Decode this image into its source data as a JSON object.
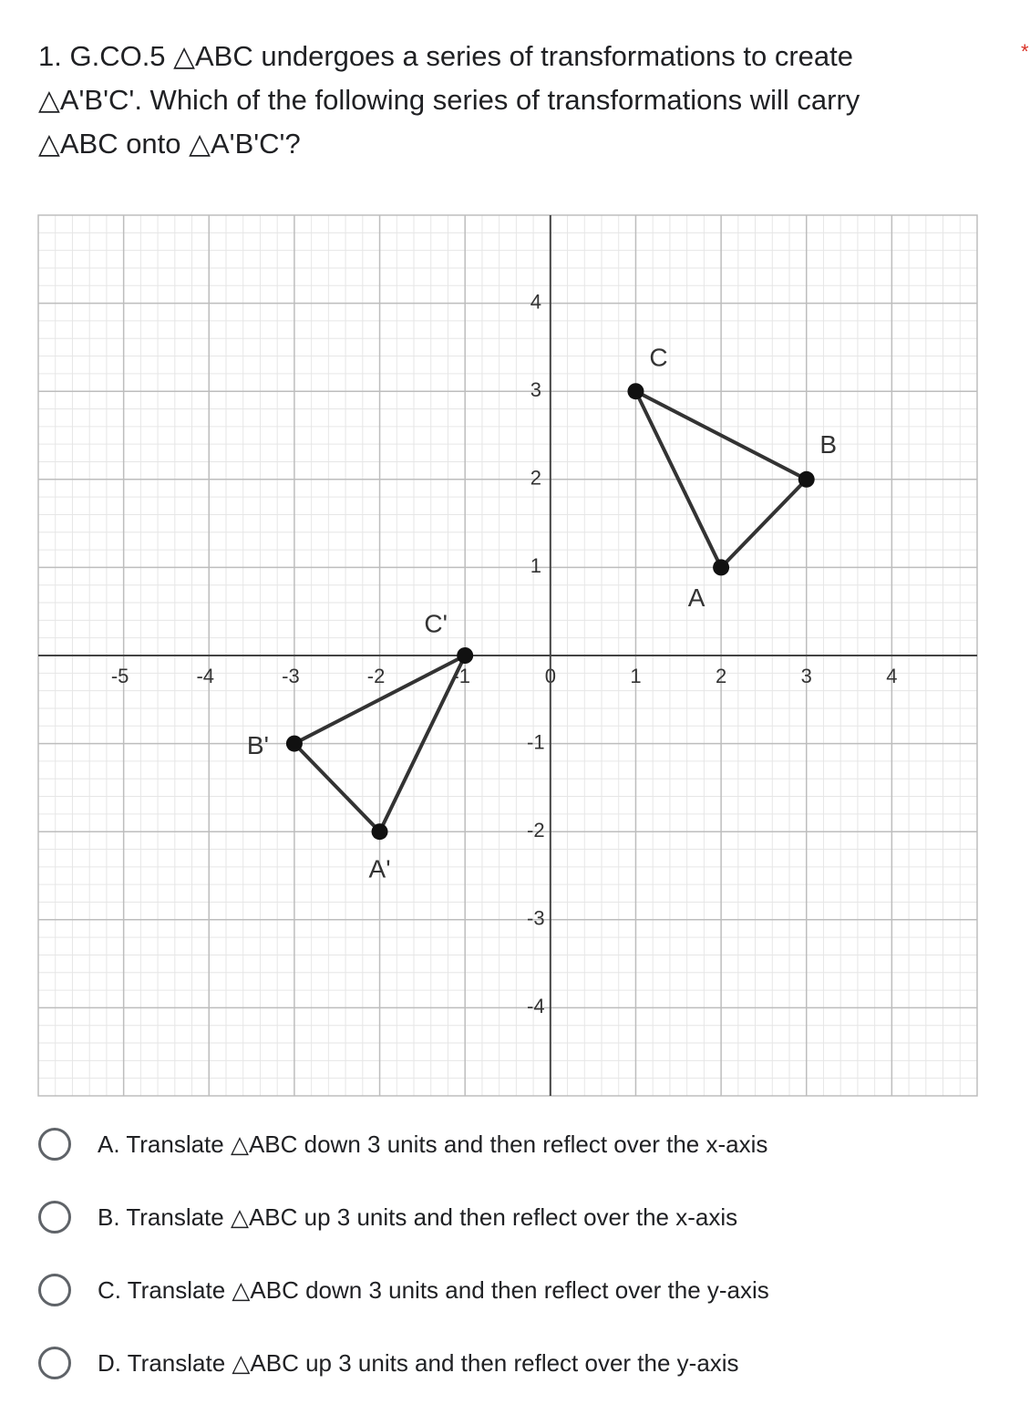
{
  "question": {
    "text": [
      "1. G.CO.5  △ABC undergoes a series of transformations to create",
      "△A'B'C'. Which of the following series of transformations will carry",
      "△ABC onto △A'B'C'?"
    ],
    "required_mark": "*"
  },
  "graph": {
    "xlim": [
      -6,
      5
    ],
    "ylim": [
      -5,
      5
    ],
    "xticks": [
      -5,
      -4,
      -3,
      -2,
      -1,
      0,
      1,
      2,
      3,
      4
    ],
    "yticks": [
      -4,
      -3,
      -2,
      -1,
      1,
      2,
      3,
      4
    ],
    "triangles": [
      {
        "points": [
          {
            "label": "A",
            "x": 2,
            "y": 1
          },
          {
            "label": "B",
            "x": 3,
            "y": 2
          },
          {
            "label": "C",
            "x": 1,
            "y": 3
          }
        ]
      },
      {
        "points": [
          {
            "label": "A'",
            "x": -2,
            "y": -2
          },
          {
            "label": "B'",
            "x": -3,
            "y": -1
          },
          {
            "label": "C'",
            "x": -1,
            "y": 0
          }
        ]
      }
    ]
  },
  "options": [
    "A. Translate △ABC down 3 units and then reflect over the x-axis",
    "B. Translate △ABC up 3 units and then reflect over the x-axis",
    "C. Translate △ABC down 3 units and then reflect over the y-axis",
    "D. Translate △ABC up 3 units and then reflect over the y-axis"
  ]
}
